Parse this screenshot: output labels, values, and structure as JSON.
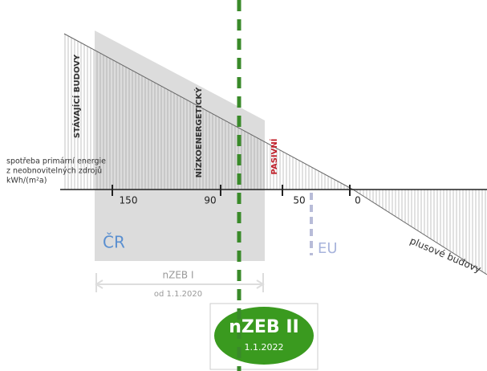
{
  "labels": {
    "existing": "STÁVAJÍCÍ BUDOVY",
    "low_energy": "NÍZKOENERGETICKÝ",
    "passive": "PASIVNÍ",
    "plus": "plusové budovy"
  },
  "axis": {
    "title": [
      "spotřeba primární energie",
      "z neobnovitelných zdrojů",
      "kWh/(m²a)"
    ],
    "ticks": [
      150,
      90,
      50,
      0
    ]
  },
  "regions": {
    "cz": "ČR",
    "eu": "EU"
  },
  "nzeb1": {
    "title": "nZEB I",
    "date": "od 1.1.2020"
  },
  "nzeb2": {
    "title": "nZEB II",
    "date": "1.1.2022"
  }
}
